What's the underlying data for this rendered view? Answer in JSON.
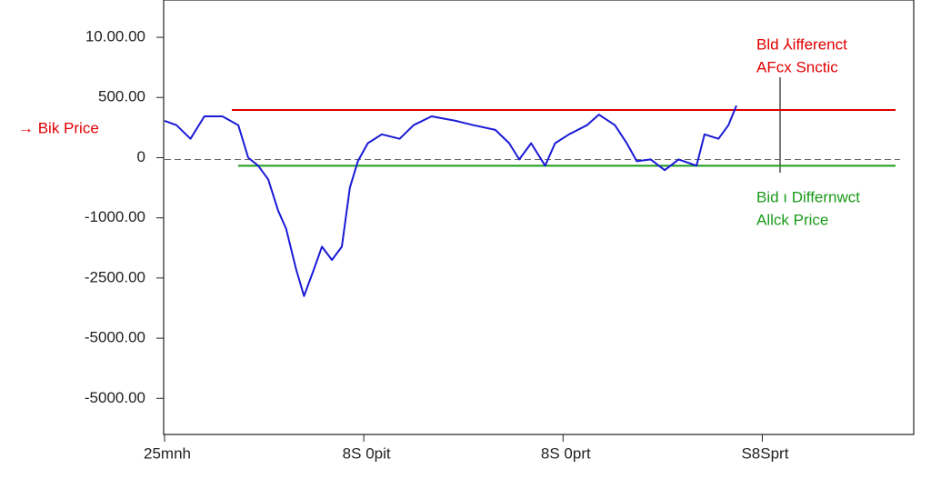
{
  "chart_data": {
    "type": "line",
    "side_label": "→ Bik Price",
    "x": [
      0,
      0.06,
      0.13,
      0.2,
      0.29,
      0.37,
      0.42,
      0.47,
      0.52,
      0.57,
      0.61,
      0.66,
      0.7,
      0.75,
      0.79,
      0.84,
      0.89,
      0.93,
      0.97,
      1.02,
      1.09,
      1.18,
      1.25,
      1.34,
      1.46,
      1.55,
      1.66,
      1.73,
      1.78,
      1.84,
      1.91,
      1.96,
      2.03,
      2.12,
      2.18,
      2.26,
      2.32,
      2.37,
      2.44,
      2.51,
      2.58,
      2.67,
      2.71,
      2.78,
      2.83,
      2.87
    ],
    "series": [
      {
        "color": "#1a1ad6",
        "values": [
          306,
          270,
          157,
          343,
          343,
          270,
          0,
          -67,
          -180,
          -440,
          -590,
          -925,
          -1150,
          -925,
          -740,
          -850,
          -740,
          -250,
          -30,
          120,
          194,
          157,
          270,
          343,
          306,
          270,
          231,
          120,
          -15,
          120,
          -67,
          120,
          194,
          270,
          358,
          270,
          120,
          -30,
          -15,
          -104,
          -15,
          -67,
          194,
          157,
          270,
          433
        ]
      }
    ],
    "xlim": [
      0,
      3.76
    ],
    "xticks": [
      {
        "value": 0,
        "label": "25mnh"
      },
      {
        "value": 1,
        "label": "8S 0pit"
      },
      {
        "value": 2,
        "label": "8S 0prt"
      },
      {
        "value": 3,
        "label": "S8Sprt"
      }
    ],
    "ylim": [
      -2300,
      1310
    ],
    "yticks": [
      {
        "value": 1000,
        "label": "10.00.00"
      },
      {
        "value": 500,
        "label": "500.00"
      },
      0,
      {
        "value": -500,
        "label": "-1000.00"
      },
      {
        "value": -1000,
        "label": "-2500.00"
      },
      {
        "value": -1500,
        "label": "-5000.00"
      },
      {
        "value": -2000,
        "label": "-5000.00"
      }
    ],
    "hlines": [
      {
        "value": 396,
        "color": "#e00000",
        "label": [
          "Bld ⅄ifferenct",
          "AFcx Snctic"
        ]
      },
      {
        "value": -67,
        "color": "#1a9a1a",
        "label": [
          "Bid ı   Differnwct",
          "Allck Price"
        ]
      }
    ],
    "zero_line": 0
  }
}
